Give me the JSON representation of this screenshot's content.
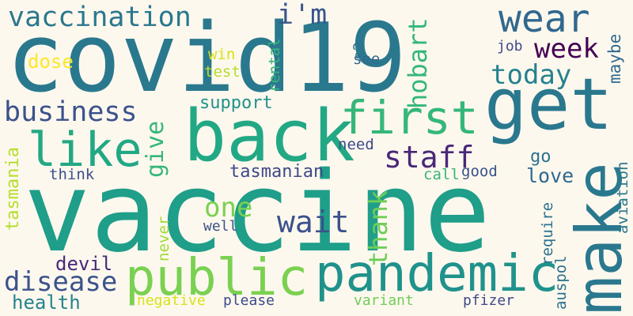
{
  "words": [
    {
      "text": "vaccine",
      "color": "#1f9e89",
      "rotated": false
    },
    {
      "text": "covid19",
      "color": "#2a788e",
      "rotated": false
    },
    {
      "text": "back",
      "color": "#22a884",
      "rotated": false
    },
    {
      "text": "get",
      "color": "#2a788e",
      "rotated": false
    },
    {
      "text": "make",
      "color": "#2a788e",
      "rotated": true
    },
    {
      "text": "pandemic",
      "color": "#20928c",
      "rotated": false
    },
    {
      "text": "public",
      "color": "#7ad151",
      "rotated": false
    },
    {
      "text": "first",
      "color": "#35b779",
      "rotated": false
    },
    {
      "text": "like",
      "color": "#22a884",
      "rotated": false
    },
    {
      "text": "wear",
      "color": "#31688e",
      "rotated": false
    },
    {
      "text": "vaccination",
      "color": "#2a788e",
      "rotated": false
    },
    {
      "text": "i'm",
      "color": "#39568c",
      "rotated": false
    },
    {
      "text": "business",
      "color": "#3b528b",
      "rotated": false
    },
    {
      "text": "disease",
      "color": "#3b528b",
      "rotated": false
    },
    {
      "text": "wait",
      "color": "#3b528b",
      "rotated": false
    },
    {
      "text": "staff",
      "color": "#482878",
      "rotated": false
    },
    {
      "text": "week",
      "color": "#440154",
      "rotated": false
    },
    {
      "text": "today",
      "color": "#26828e",
      "rotated": false
    },
    {
      "text": "one",
      "color": "#7ad151",
      "rotated": false
    },
    {
      "text": "give",
      "color": "#35b779",
      "rotated": true
    },
    {
      "text": "hobart",
      "color": "#35b779",
      "rotated": true
    },
    {
      "text": "thank",
      "color": "#6ece58",
      "rotated": true
    },
    {
      "text": "support",
      "color": "#21918c",
      "rotated": false
    },
    {
      "text": "health",
      "color": "#26828e",
      "rotated": false
    },
    {
      "text": "tasmanian",
      "color": "#3e4989",
      "rotated": false
    },
    {
      "text": "love",
      "color": "#31688e",
      "rotated": false
    },
    {
      "text": "devil",
      "color": "#482878",
      "rotated": false
    },
    {
      "text": "dose",
      "color": "#fde725",
      "rotated": false
    },
    {
      "text": "test",
      "color": "#b5de2b",
      "rotated": false
    },
    {
      "text": "win",
      "color": "#d8e219",
      "rotated": false
    },
    {
      "text": "rental",
      "color": "#35b779",
      "rotated": true
    },
    {
      "text": "see",
      "color": "#31688e",
      "rotated": false
    },
    {
      "text": "s2",
      "color": "#2c728e",
      "rotated": true
    },
    {
      "text": "job",
      "color": "#3e4989",
      "rotated": false
    },
    {
      "text": "maybe",
      "color": "#31688e",
      "rotated": true
    },
    {
      "text": "tasmania",
      "color": "#b5de2b",
      "rotated": true
    },
    {
      "text": "think",
      "color": "#3b528b",
      "rotated": false
    },
    {
      "text": "need",
      "color": "#3e4989",
      "rotated": false
    },
    {
      "text": "call",
      "color": "#37b578",
      "rotated": false
    },
    {
      "text": "good",
      "color": "#3b528b",
      "rotated": false
    },
    {
      "text": "go",
      "color": "#2c728e",
      "rotated": false
    },
    {
      "text": "require",
      "color": "#2c728e",
      "rotated": true
    },
    {
      "text": "aviation",
      "color": "#2a788e",
      "rotated": true
    },
    {
      "text": "never",
      "color": "#a0da39",
      "rotated": true
    },
    {
      "text": "well",
      "color": "#3b528b",
      "rotated": false
    },
    {
      "text": "auspol",
      "color": "#2c728e",
      "rotated": true
    },
    {
      "text": "negative",
      "color": "#d8e219",
      "rotated": false
    },
    {
      "text": "please",
      "color": "#3e4989",
      "rotated": false
    },
    {
      "text": "variant",
      "color": "#6ece58",
      "rotated": false
    },
    {
      "text": "pfizer",
      "color": "#3e4989",
      "rotated": false
    }
  ]
}
